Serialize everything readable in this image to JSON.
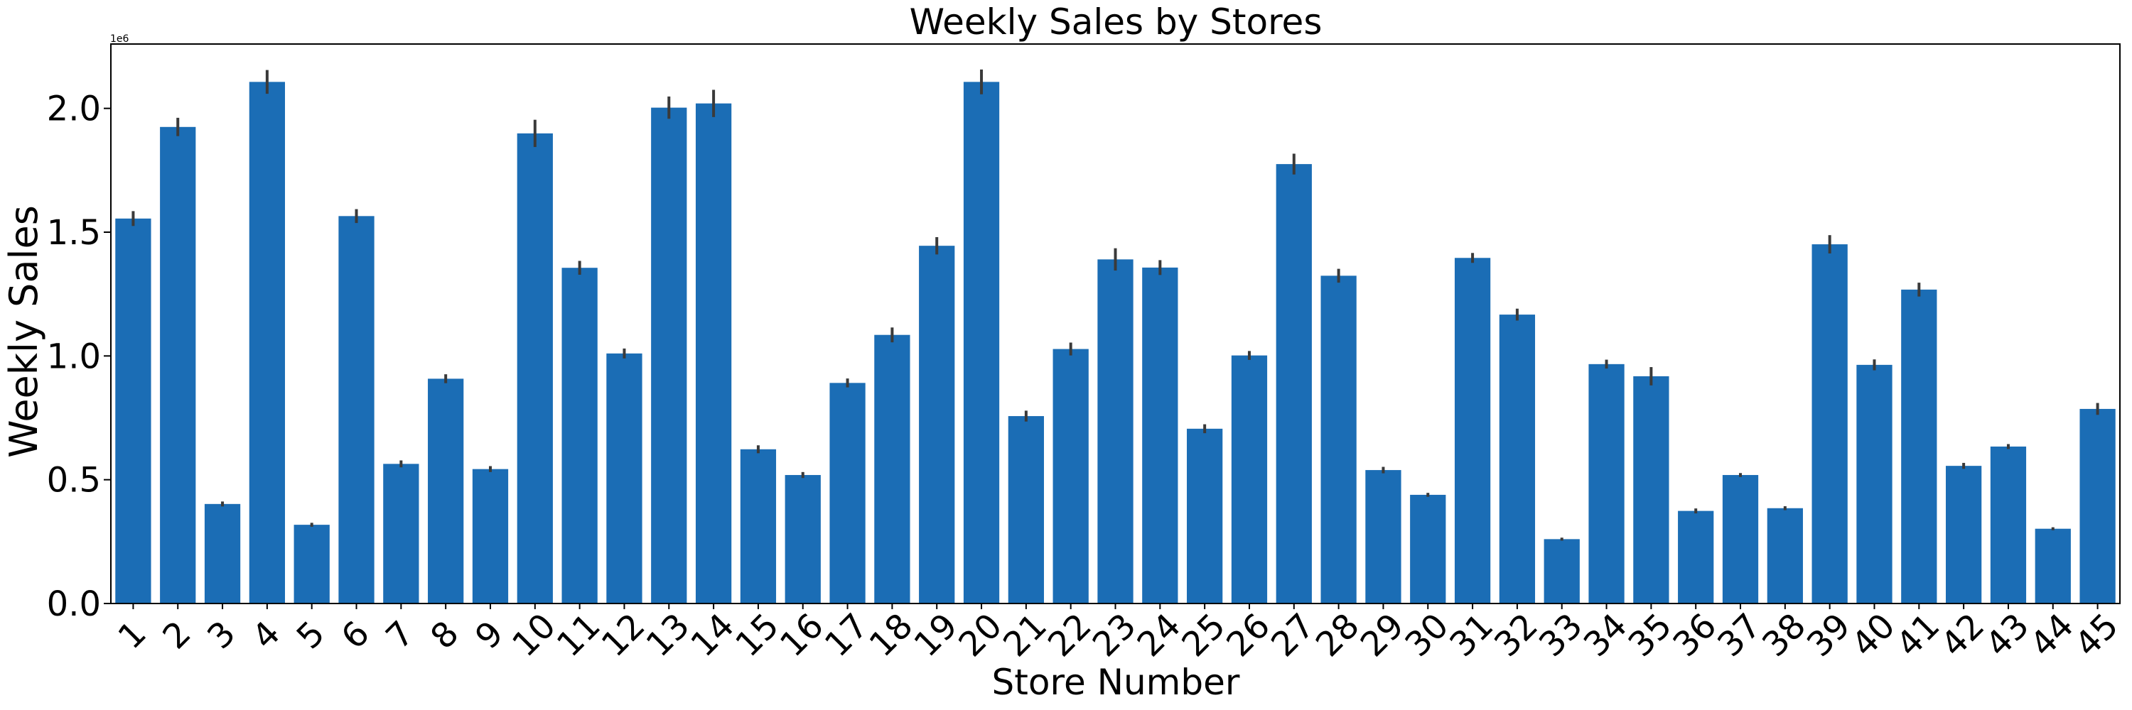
{
  "chart_data": {
    "type": "bar",
    "title": "Weekly Sales by Stores",
    "xlabel": "Store Number",
    "ylabel": "Weekly Sales",
    "offset_text": "1e6",
    "ylim": [
      0,
      2.26
    ],
    "yticks": [
      0.0,
      0.5,
      1.0,
      1.5,
      2.0
    ],
    "ytick_labels": [
      "0.0",
      "0.5",
      "1.0",
      "1.5",
      "2.0"
    ],
    "bar_color": "#1b6db5",
    "errorbar_color": "#3a3a3a",
    "grid": false,
    "categories": [
      "1",
      "2",
      "3",
      "4",
      "5",
      "6",
      "7",
      "8",
      "9",
      "10",
      "11",
      "12",
      "13",
      "14",
      "15",
      "16",
      "17",
      "18",
      "19",
      "20",
      "21",
      "22",
      "23",
      "24",
      "25",
      "26",
      "27",
      "28",
      "29",
      "30",
      "31",
      "32",
      "33",
      "34",
      "35",
      "36",
      "37",
      "38",
      "39",
      "40",
      "41",
      "42",
      "43",
      "44",
      "45"
    ],
    "values": [
      1.555,
      1.925,
      0.402,
      2.107,
      0.318,
      1.565,
      0.564,
      0.908,
      0.543,
      1.899,
      1.356,
      1.01,
      2.003,
      2.02,
      0.623,
      0.519,
      0.891,
      1.085,
      1.445,
      2.107,
      0.757,
      1.028,
      1.39,
      1.357,
      0.706,
      1.002,
      1.775,
      1.324,
      0.539,
      0.439,
      1.396,
      1.167,
      0.26,
      0.967,
      0.918,
      0.374,
      0.519,
      0.385,
      1.451,
      0.964,
      1.268,
      0.556,
      0.634,
      0.302,
      0.786
    ],
    "errors": [
      0.03,
      0.037,
      0.01,
      0.048,
      0.008,
      0.028,
      0.014,
      0.018,
      0.012,
      0.055,
      0.028,
      0.02,
      0.045,
      0.055,
      0.016,
      0.012,
      0.018,
      0.03,
      0.035,
      0.05,
      0.022,
      0.026,
      0.045,
      0.03,
      0.018,
      0.018,
      0.042,
      0.028,
      0.013,
      0.008,
      0.02,
      0.024,
      0.006,
      0.018,
      0.037,
      0.01,
      0.008,
      0.008,
      0.037,
      0.022,
      0.028,
      0.012,
      0.01,
      0.006,
      0.024
    ]
  }
}
